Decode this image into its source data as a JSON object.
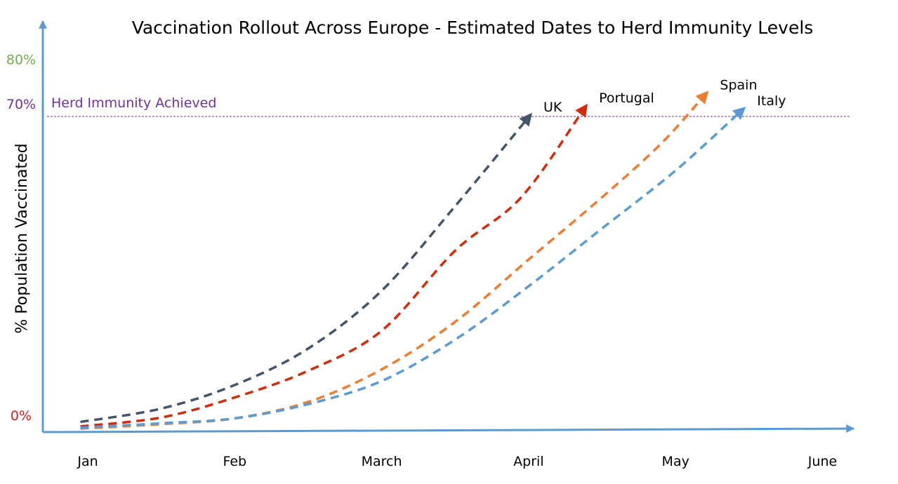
{
  "chart_data": {
    "type": "line",
    "title": "Vaccination Rollout Across Europe - Estimated Dates to Herd Immunity Levels",
    "ylabel": "% Population Vaccinated",
    "xlabel": "",
    "x_ticks": [
      "Jan",
      "Feb",
      "March",
      "April",
      "May",
      "June"
    ],
    "y_ticks": [
      {
        "label": "0%",
        "value": 0,
        "color": "#e8161b"
      },
      {
        "label": "70%",
        "value": 70,
        "color": "#7030a0"
      },
      {
        "label": "80%",
        "value": 80,
        "color": "#70ad47"
      }
    ],
    "xlim": [
      0,
      5.2
    ],
    "ylim": [
      -3,
      80
    ],
    "reference_line": {
      "label": "Herd Immunity Achieved",
      "value": 70,
      "color": "#7030a0"
    },
    "axis_color": "#5b9bd5",
    "series": [
      {
        "name": "UK",
        "color": "#44546a",
        "points": [
          [
            -0.05,
            -1.5
          ],
          [
            0.5,
            1.5
          ],
          [
            1.0,
            6.8
          ],
          [
            1.5,
            15
          ],
          [
            2.0,
            28
          ],
          [
            2.5,
            47
          ],
          [
            3.0,
            67
          ]
        ]
      },
      {
        "name": "Portugal",
        "color": "#d22c0c",
        "points": [
          [
            -0.05,
            -2.5
          ],
          [
            0.5,
            -0.5
          ],
          [
            1.0,
            4
          ],
          [
            1.5,
            10
          ],
          [
            2.0,
            19
          ],
          [
            2.5,
            37
          ],
          [
            2.95,
            49
          ],
          [
            3.38,
            69
          ]
        ]
      },
      {
        "name": "Spain",
        "color": "#ed7d31",
        "points": [
          [
            -0.05,
            -3
          ],
          [
            0.5,
            -2
          ],
          [
            1.0,
            -0.7
          ],
          [
            1.5,
            3
          ],
          [
            2.0,
            10.3
          ],
          [
            2.5,
            21
          ],
          [
            3.0,
            35
          ],
          [
            3.5,
            49
          ],
          [
            3.9,
            61
          ],
          [
            4.2,
            72
          ]
        ]
      },
      {
        "name": "Italy",
        "color": "#5b9bd5",
        "points": [
          [
            -0.05,
            -2.8
          ],
          [
            0.5,
            -1.8
          ],
          [
            1.0,
            -0.7
          ],
          [
            1.5,
            2.5
          ],
          [
            2.0,
            7.7
          ],
          [
            2.5,
            17
          ],
          [
            3.0,
            29
          ],
          [
            3.5,
            42
          ],
          [
            4.0,
            55
          ],
          [
            4.45,
            68.5
          ]
        ]
      }
    ]
  }
}
